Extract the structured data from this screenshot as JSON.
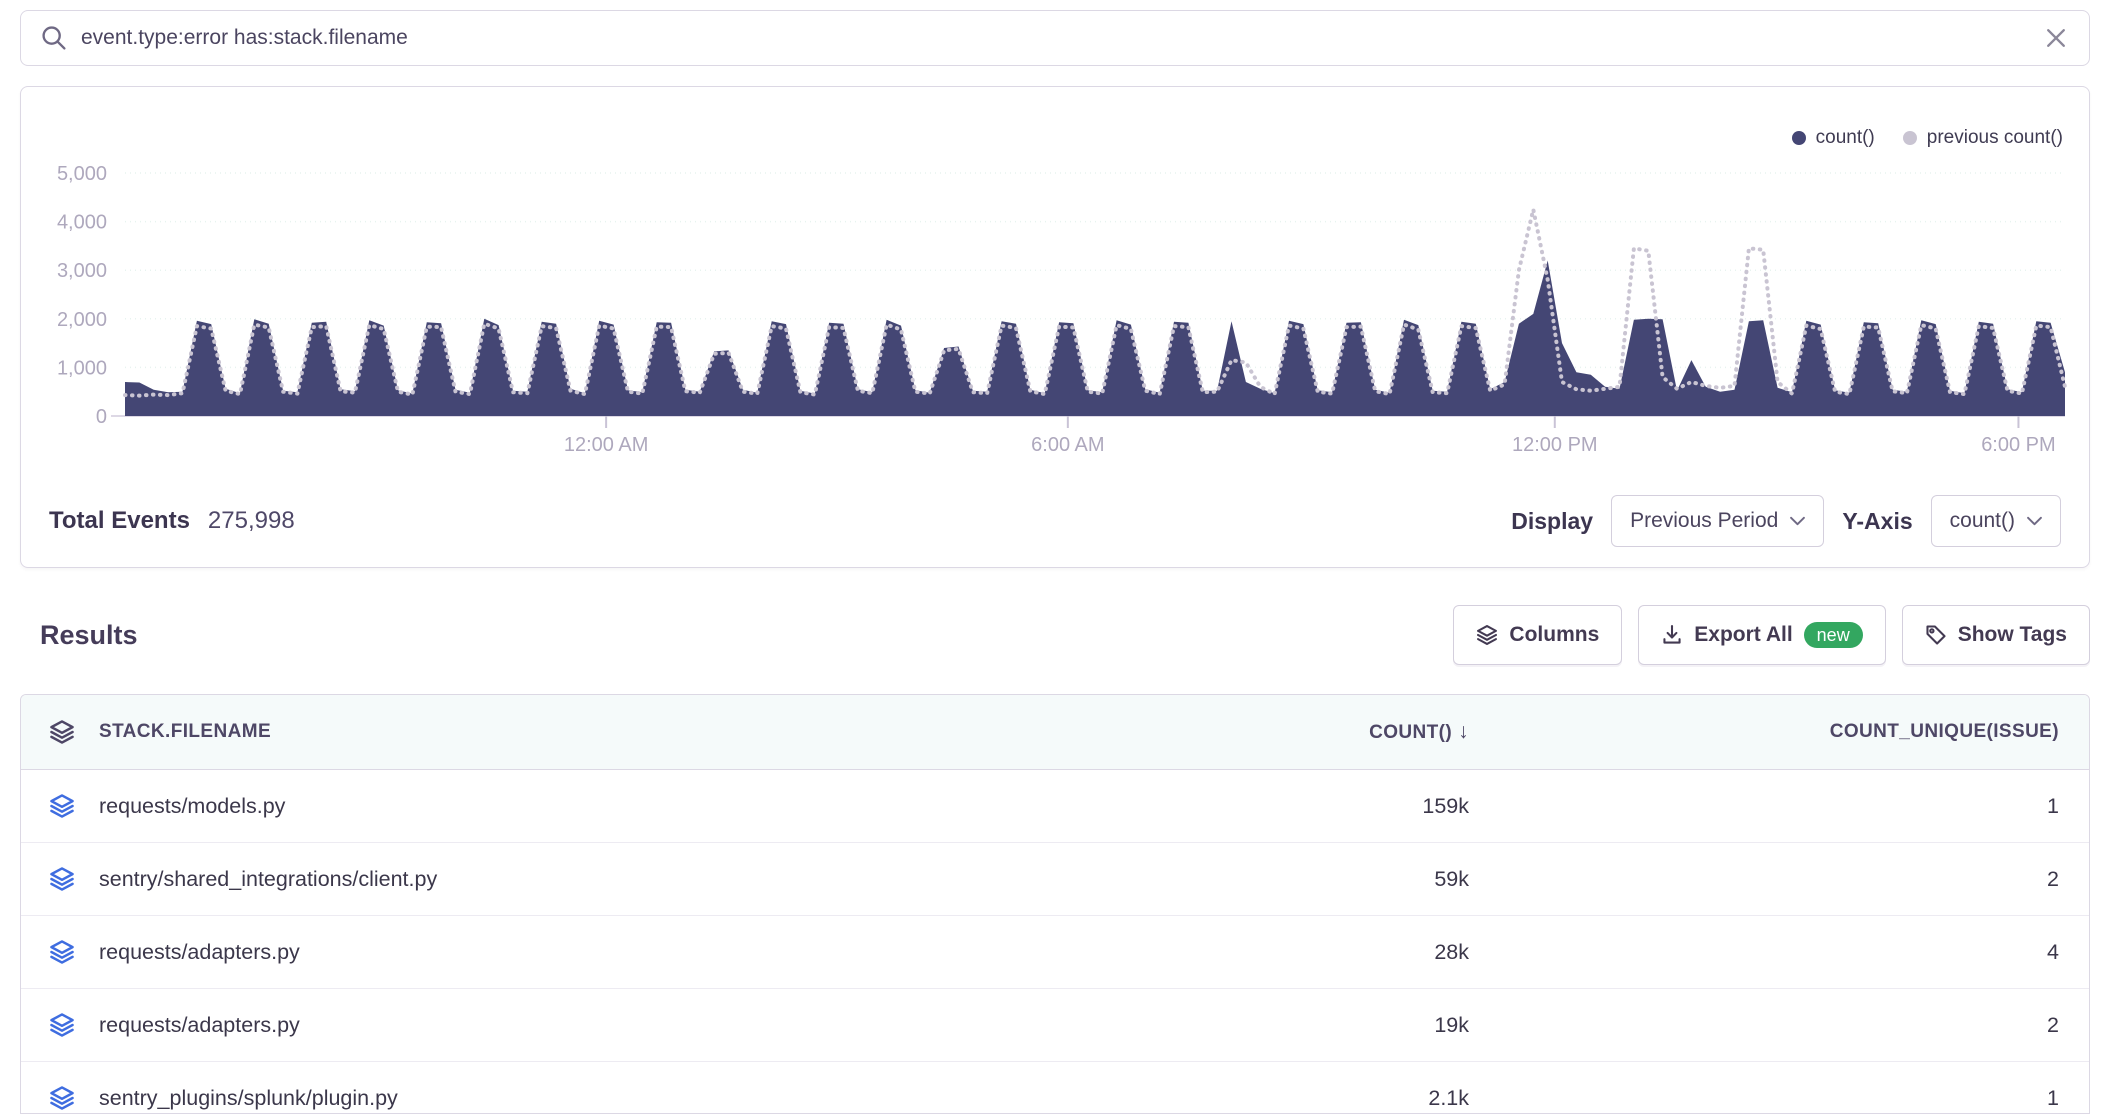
{
  "search": {
    "query": "event.type:error has:stack.filename"
  },
  "chart": {
    "legend": [
      {
        "label": "count()",
        "color": "#444674"
      },
      {
        "label": "previous count()",
        "color": "#c9c4d2"
      }
    ],
    "summary": {
      "label": "Total Events",
      "value": "275,998"
    },
    "display": {
      "label": "Display",
      "value": "Previous Period"
    },
    "yaxis_control": {
      "label": "Y-Axis",
      "value": "count()"
    }
  },
  "chart_data": {
    "type": "area",
    "title": "",
    "xlabel": "",
    "ylabel": "",
    "ylim": [
      0,
      5500
    ],
    "grid": "horizontal-dotted",
    "legend_position": "top-right",
    "yticks": [
      0,
      1000,
      2000,
      3000,
      4000,
      5000
    ],
    "ytick_labels": [
      "0",
      "1,000",
      "2,000",
      "3,000",
      "4,000",
      "5,000"
    ],
    "xticks": [
      {
        "label": "12:00 AM",
        "pos": 0.248
      },
      {
        "label": "6:00 AM",
        "pos": 0.486
      },
      {
        "label": "12:00 PM",
        "pos": 0.737
      },
      {
        "label": "6:00 PM",
        "pos": 0.976
      }
    ],
    "series": [
      {
        "name": "count()",
        "color": "#444674",
        "style": "filled-area",
        "values": [
          700,
          690,
          540,
          490,
          500,
          1960,
          1890,
          560,
          470,
          1990,
          1900,
          520,
          490,
          1920,
          1940,
          550,
          510,
          1970,
          1860,
          530,
          460,
          1930,
          1910,
          540,
          480,
          2000,
          1870,
          520,
          500,
          1940,
          1900,
          560,
          470,
          1960,
          1880,
          530,
          490,
          1930,
          1920,
          540,
          500,
          1330,
          1350,
          540,
          480,
          1950,
          1890,
          520,
          460,
          1920,
          1900,
          550,
          490,
          1980,
          1860,
          530,
          480,
          1400,
          1430,
          520,
          500,
          1950,
          1900,
          540,
          470,
          1930,
          1910,
          530,
          490,
          1970,
          1880,
          550,
          480,
          1940,
          1920,
          520,
          520,
          1950,
          700,
          560,
          470,
          1960,
          1890,
          530,
          490,
          1920,
          1930,
          540,
          480,
          1980,
          1870,
          520,
          500,
          1940,
          1900,
          550,
          700,
          1900,
          2100,
          3200,
          1500,
          900,
          850,
          600,
          560,
          1980,
          2000,
          1990,
          520,
          1150,
          600,
          500,
          540,
          1950,
          1970,
          580,
          490,
          1960,
          1880,
          530,
          480,
          1930,
          1910,
          540,
          500,
          1970,
          1890,
          520,
          470,
          1940,
          1900,
          550,
          490,
          1950,
          1920,
          900
        ]
      },
      {
        "name": "previous count()",
        "color": "#c9c4d2",
        "style": "dotted-line",
        "values": [
          430,
          420,
          440,
          430,
          470,
          1850,
          1800,
          520,
          450,
          1880,
          1820,
          500,
          460,
          1830,
          1850,
          510,
          480,
          1870,
          1790,
          500,
          440,
          1840,
          1830,
          500,
          450,
          1900,
          1800,
          490,
          470,
          1850,
          1810,
          520,
          450,
          1860,
          1800,
          500,
          460,
          1840,
          1830,
          510,
          480,
          1280,
          1300,
          500,
          460,
          1850,
          1800,
          490,
          440,
          1830,
          1810,
          520,
          470,
          1880,
          1780,
          500,
          460,
          1350,
          1380,
          490,
          470,
          1860,
          1810,
          510,
          450,
          1840,
          1820,
          500,
          460,
          1870,
          1790,
          520,
          450,
          1850,
          1830,
          490,
          500,
          1150,
          1100,
          600,
          450,
          1860,
          1800,
          500,
          460,
          1830,
          1840,
          510,
          450,
          1880,
          1780,
          490,
          470,
          1850,
          1810,
          520,
          650,
          3000,
          4250,
          2800,
          700,
          550,
          520,
          560,
          600,
          3450,
          3400,
          800,
          560,
          700,
          620,
          580,
          620,
          3450,
          3420,
          700,
          460,
          1860,
          1790,
          500,
          450,
          1840,
          1820,
          510,
          470,
          1870,
          1800,
          490,
          450,
          1850,
          1810,
          520,
          460,
          1860,
          1830,
          600
        ]
      }
    ]
  },
  "results": {
    "title": "Results",
    "buttons": [
      {
        "label": "Columns",
        "icon": "layers-icon"
      },
      {
        "label": "Export All",
        "icon": "download-icon",
        "badge": "new"
      },
      {
        "label": "Show Tags",
        "icon": "tag-icon"
      }
    ]
  },
  "table": {
    "columns": [
      "STACK.FILENAME",
      "COUNT()",
      "COUNT_UNIQUE(ISSUE)"
    ],
    "sorted_column": "COUNT()",
    "sort_direction": "desc",
    "sort_icon": "↓",
    "rows": [
      {
        "filename": "requests/models.py",
        "count": "159k",
        "unique": "1"
      },
      {
        "filename": "sentry/shared_integrations/client.py",
        "count": "59k",
        "unique": "2"
      },
      {
        "filename": "requests/adapters.py",
        "count": "28k",
        "unique": "4"
      },
      {
        "filename": "requests/adapters.py",
        "count": "19k",
        "unique": "2"
      },
      {
        "filename": "sentry_plugins/splunk/plugin.py",
        "count": "2.1k",
        "unique": "1"
      }
    ]
  },
  "colors": {
    "series_current": "#444674",
    "series_previous": "#c9c4d2",
    "badge_green": "#33a760",
    "row_icon_blue": "#3f6de0",
    "axis_label": "#aea8bd",
    "table_header_bg": "#f5fafa",
    "border": "#dcd8e4"
  }
}
